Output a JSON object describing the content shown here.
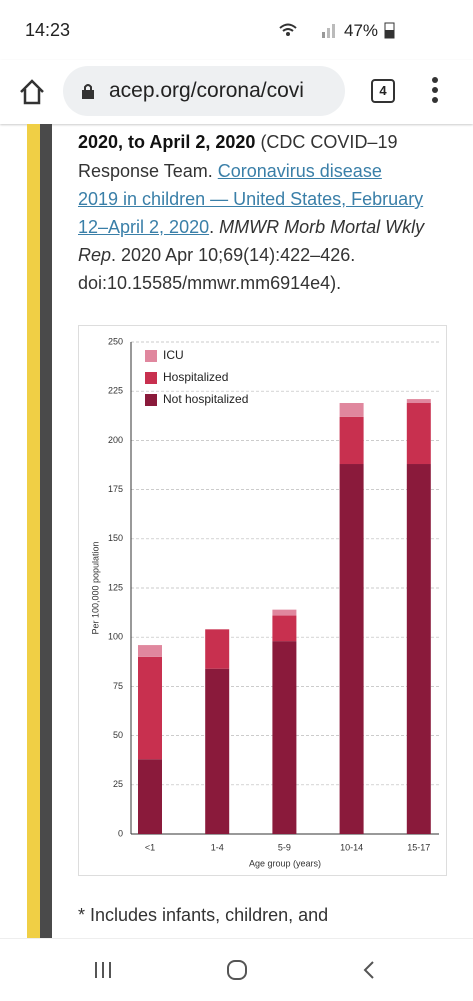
{
  "status_bar": {
    "time": "14:23",
    "battery": "47%"
  },
  "browser": {
    "url": "acep.org/corona/covi",
    "tab_count": "4"
  },
  "article": {
    "lines": [
      [
        "2020, to April 2, 2020",
        " (CDC COVID–19"
      ],
      [
        "Response Team. ",
        "Coronavirus disease"
      ],
      [
        "2019 in children — United States, February"
      ],
      [
        "12–April 2, 2020",
        ". ",
        "MMWR Morb Mortal Wkly"
      ],
      [
        "Rep",
        ". 2020 Apr 10;69(14):422–426."
      ],
      [
        "doi:10.15585/mmwr.mm6914e4)."
      ]
    ],
    "footnote": "* Includes infants, children, and"
  },
  "chart_data": {
    "type": "stacked-bar",
    "x_label": "Age group (years)",
    "y_label": "Per 100,000 population",
    "categories": [
      "<1",
      "1-4",
      "5-9",
      "10-14",
      "15-17"
    ],
    "series": [
      {
        "name": "ICU",
        "color": "#e0879e",
        "values": [
          6,
          0,
          3,
          7,
          2
        ]
      },
      {
        "name": "Hospitalized",
        "color": "#c8304f",
        "values": [
          52,
          20,
          13,
          24,
          31
        ]
      },
      {
        "name": "Not hospitalized",
        "color": "#8a1a3b",
        "values": [
          38,
          84,
          98,
          188,
          188
        ]
      }
    ],
    "ylim": [
      0,
      250
    ],
    "yticks": [
      0,
      25,
      50,
      75,
      100,
      125,
      150,
      175,
      200,
      225,
      250
    ],
    "grid": true,
    "legend": "top-left"
  }
}
